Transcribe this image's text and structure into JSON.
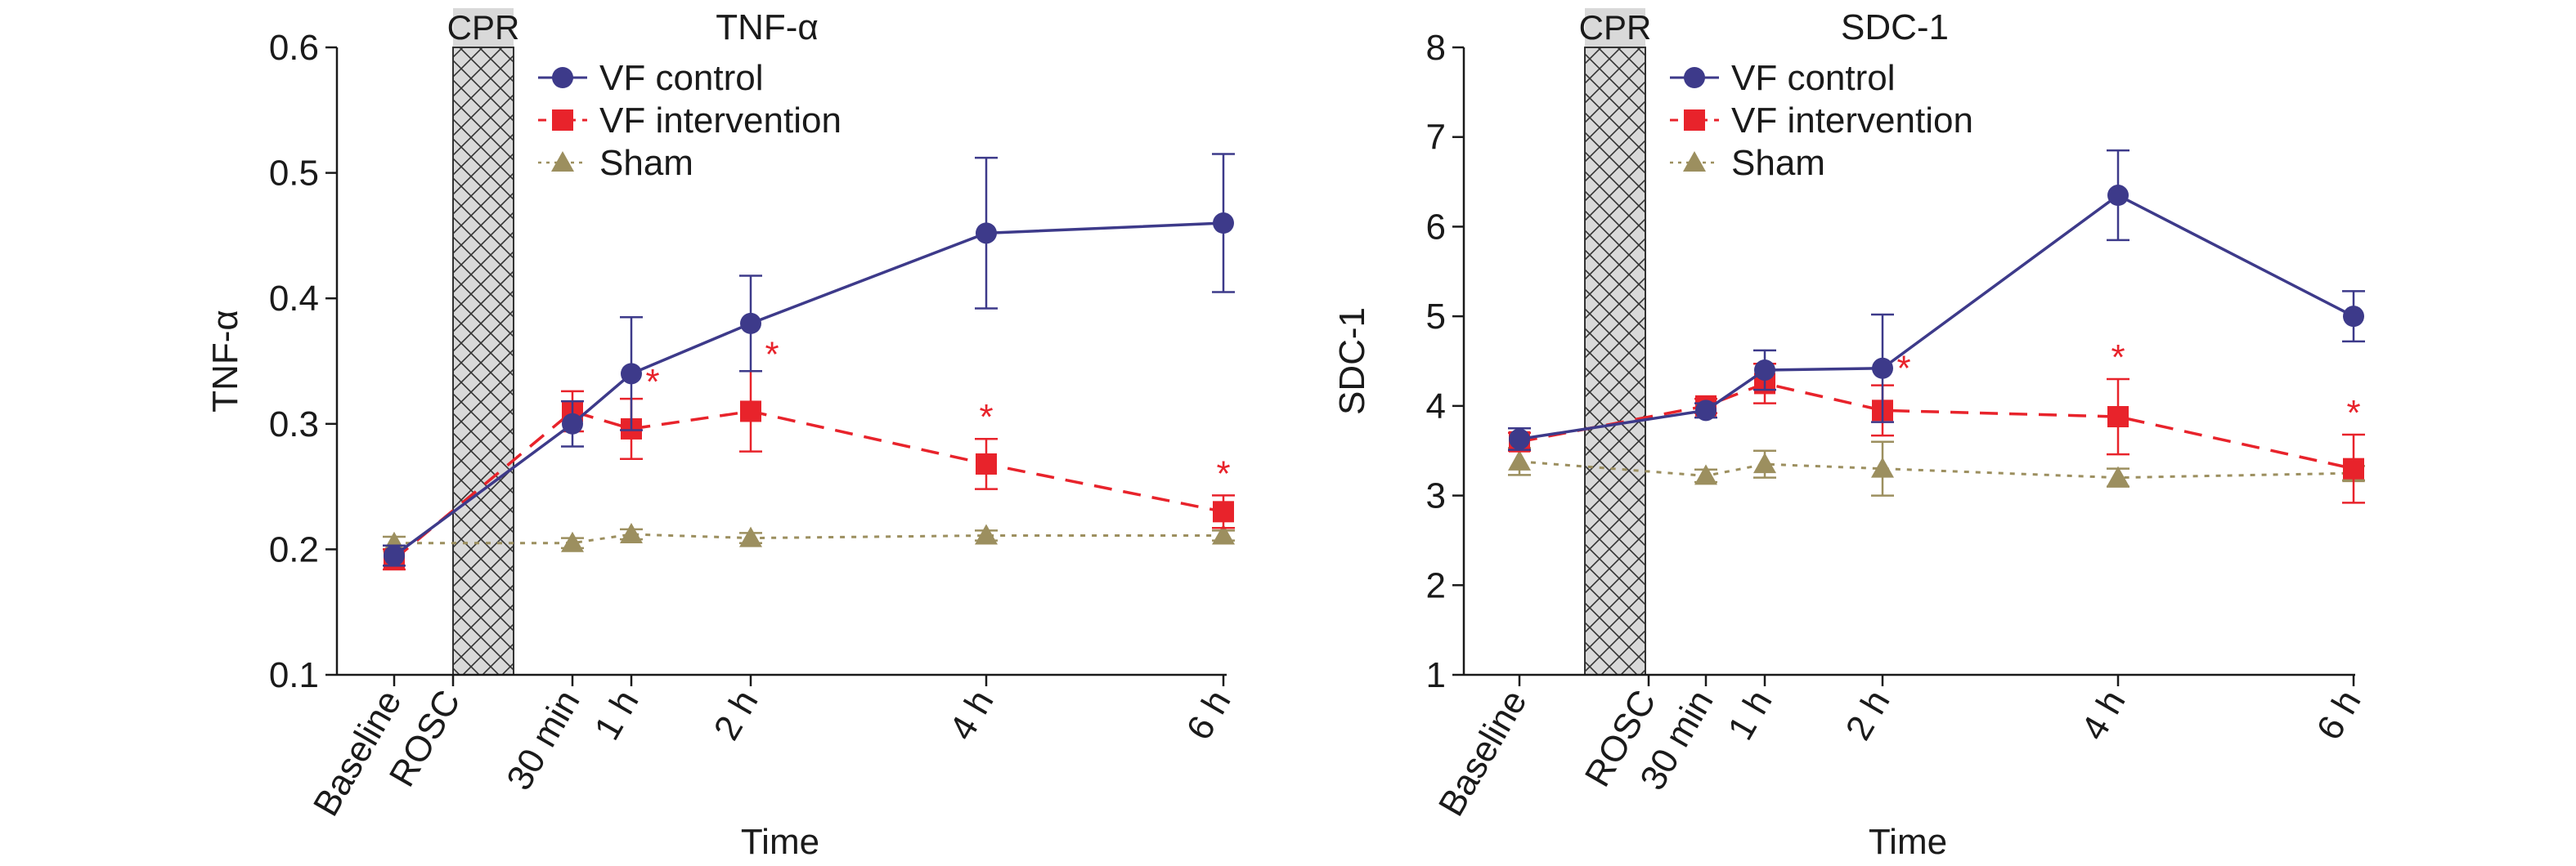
{
  "figure": {
    "x_tick_labels": [
      "Baseline",
      "ROSC",
      "30 min",
      "1 h",
      "2 h",
      "4 h",
      "6 h"
    ],
    "cpr_label": "CPR",
    "legend": [
      "VF control",
      "VF intervention",
      "Sham"
    ],
    "significance_marker": "*",
    "colors": {
      "vf_control": "#3d3a8a",
      "vf_intervention": "#e8232b",
      "sham": "#9c8f5f",
      "cpr_fill": "#d9d9d9",
      "axis": "#1a1a1a"
    }
  },
  "chart_data": [
    {
      "type": "line",
      "title": "TNF-α",
      "xlabel": "Time",
      "ylabel": "TNF-α",
      "ylim": [
        0.1,
        0.6
      ],
      "yticks": [
        "0.1",
        "0.2",
        "0.3",
        "0.4",
        "0.5",
        "0.6"
      ],
      "categories": [
        "Baseline",
        "ROSC",
        "30 min",
        "1 h",
        "2 h",
        "4 h",
        "6 h"
      ],
      "shaded_interval": {
        "label": "CPR",
        "from": "Baseline",
        "to": "ROSC"
      },
      "series": [
        {
          "name": "VF control",
          "marker": "circle",
          "line": "solid",
          "values": [
            0.195,
            null,
            0.3,
            0.34,
            0.38,
            0.452,
            0.46
          ],
          "errors": [
            0.008,
            null,
            0.018,
            0.045,
            0.038,
            0.06,
            0.055
          ],
          "significant": [
            false,
            false,
            false,
            false,
            false,
            false,
            false
          ]
        },
        {
          "name": "VF intervention",
          "marker": "square",
          "line": "dashed",
          "values": [
            0.192,
            null,
            0.31,
            0.296,
            0.31,
            0.268,
            0.23
          ],
          "errors": [
            0.008,
            null,
            0.016,
            0.024,
            0.032,
            0.02,
            0.013
          ],
          "significant": [
            false,
            false,
            false,
            true,
            true,
            true,
            true
          ]
        },
        {
          "name": "Sham",
          "marker": "triangle",
          "line": "dotted",
          "values": [
            0.205,
            null,
            0.205,
            0.212,
            0.209,
            0.211,
            0.211
          ],
          "errors": [
            0.005,
            null,
            0.004,
            0.004,
            0.004,
            0.004,
            0.004
          ],
          "significant": [
            false,
            false,
            false,
            false,
            false,
            false,
            false
          ]
        }
      ]
    },
    {
      "type": "line",
      "title": "SDC-1",
      "xlabel": "Time",
      "ylabel": "SDC-1",
      "ylim": [
        1,
        8
      ],
      "yticks": [
        "1",
        "2",
        "3",
        "4",
        "5",
        "6",
        "7",
        "8"
      ],
      "categories": [
        "Baseline",
        "ROSC",
        "30 min",
        "1 h",
        "2 h",
        "4 h",
        "6 h"
      ],
      "shaded_interval": {
        "label": "CPR",
        "from": "Baseline",
        "to": "ROSC"
      },
      "series": [
        {
          "name": "VF control",
          "marker": "circle",
          "line": "solid",
          "values": [
            3.63,
            null,
            3.95,
            4.4,
            4.42,
            6.35,
            5.0
          ],
          "errors": [
            0.12,
            null,
            0.08,
            0.22,
            0.6,
            0.5,
            0.28
          ],
          "significant": [
            false,
            false,
            false,
            false,
            false,
            false,
            false
          ]
        },
        {
          "name": "VF intervention",
          "marker": "square",
          "line": "dashed",
          "values": [
            3.6,
            null,
            4.0,
            4.25,
            3.95,
            3.88,
            3.3
          ],
          "errors": [
            0.1,
            null,
            0.08,
            0.22,
            0.28,
            0.42,
            0.38
          ],
          "significant": [
            false,
            false,
            false,
            false,
            true,
            true,
            true
          ]
        },
        {
          "name": "Sham",
          "marker": "triangle",
          "line": "dotted",
          "values": [
            3.38,
            null,
            3.22,
            3.35,
            3.3,
            3.2,
            3.25
          ],
          "errors": [
            0.15,
            null,
            0.07,
            0.15,
            0.3,
            0.1,
            0.08
          ],
          "significant": [
            false,
            false,
            false,
            false,
            false,
            false,
            false
          ]
        }
      ]
    }
  ]
}
